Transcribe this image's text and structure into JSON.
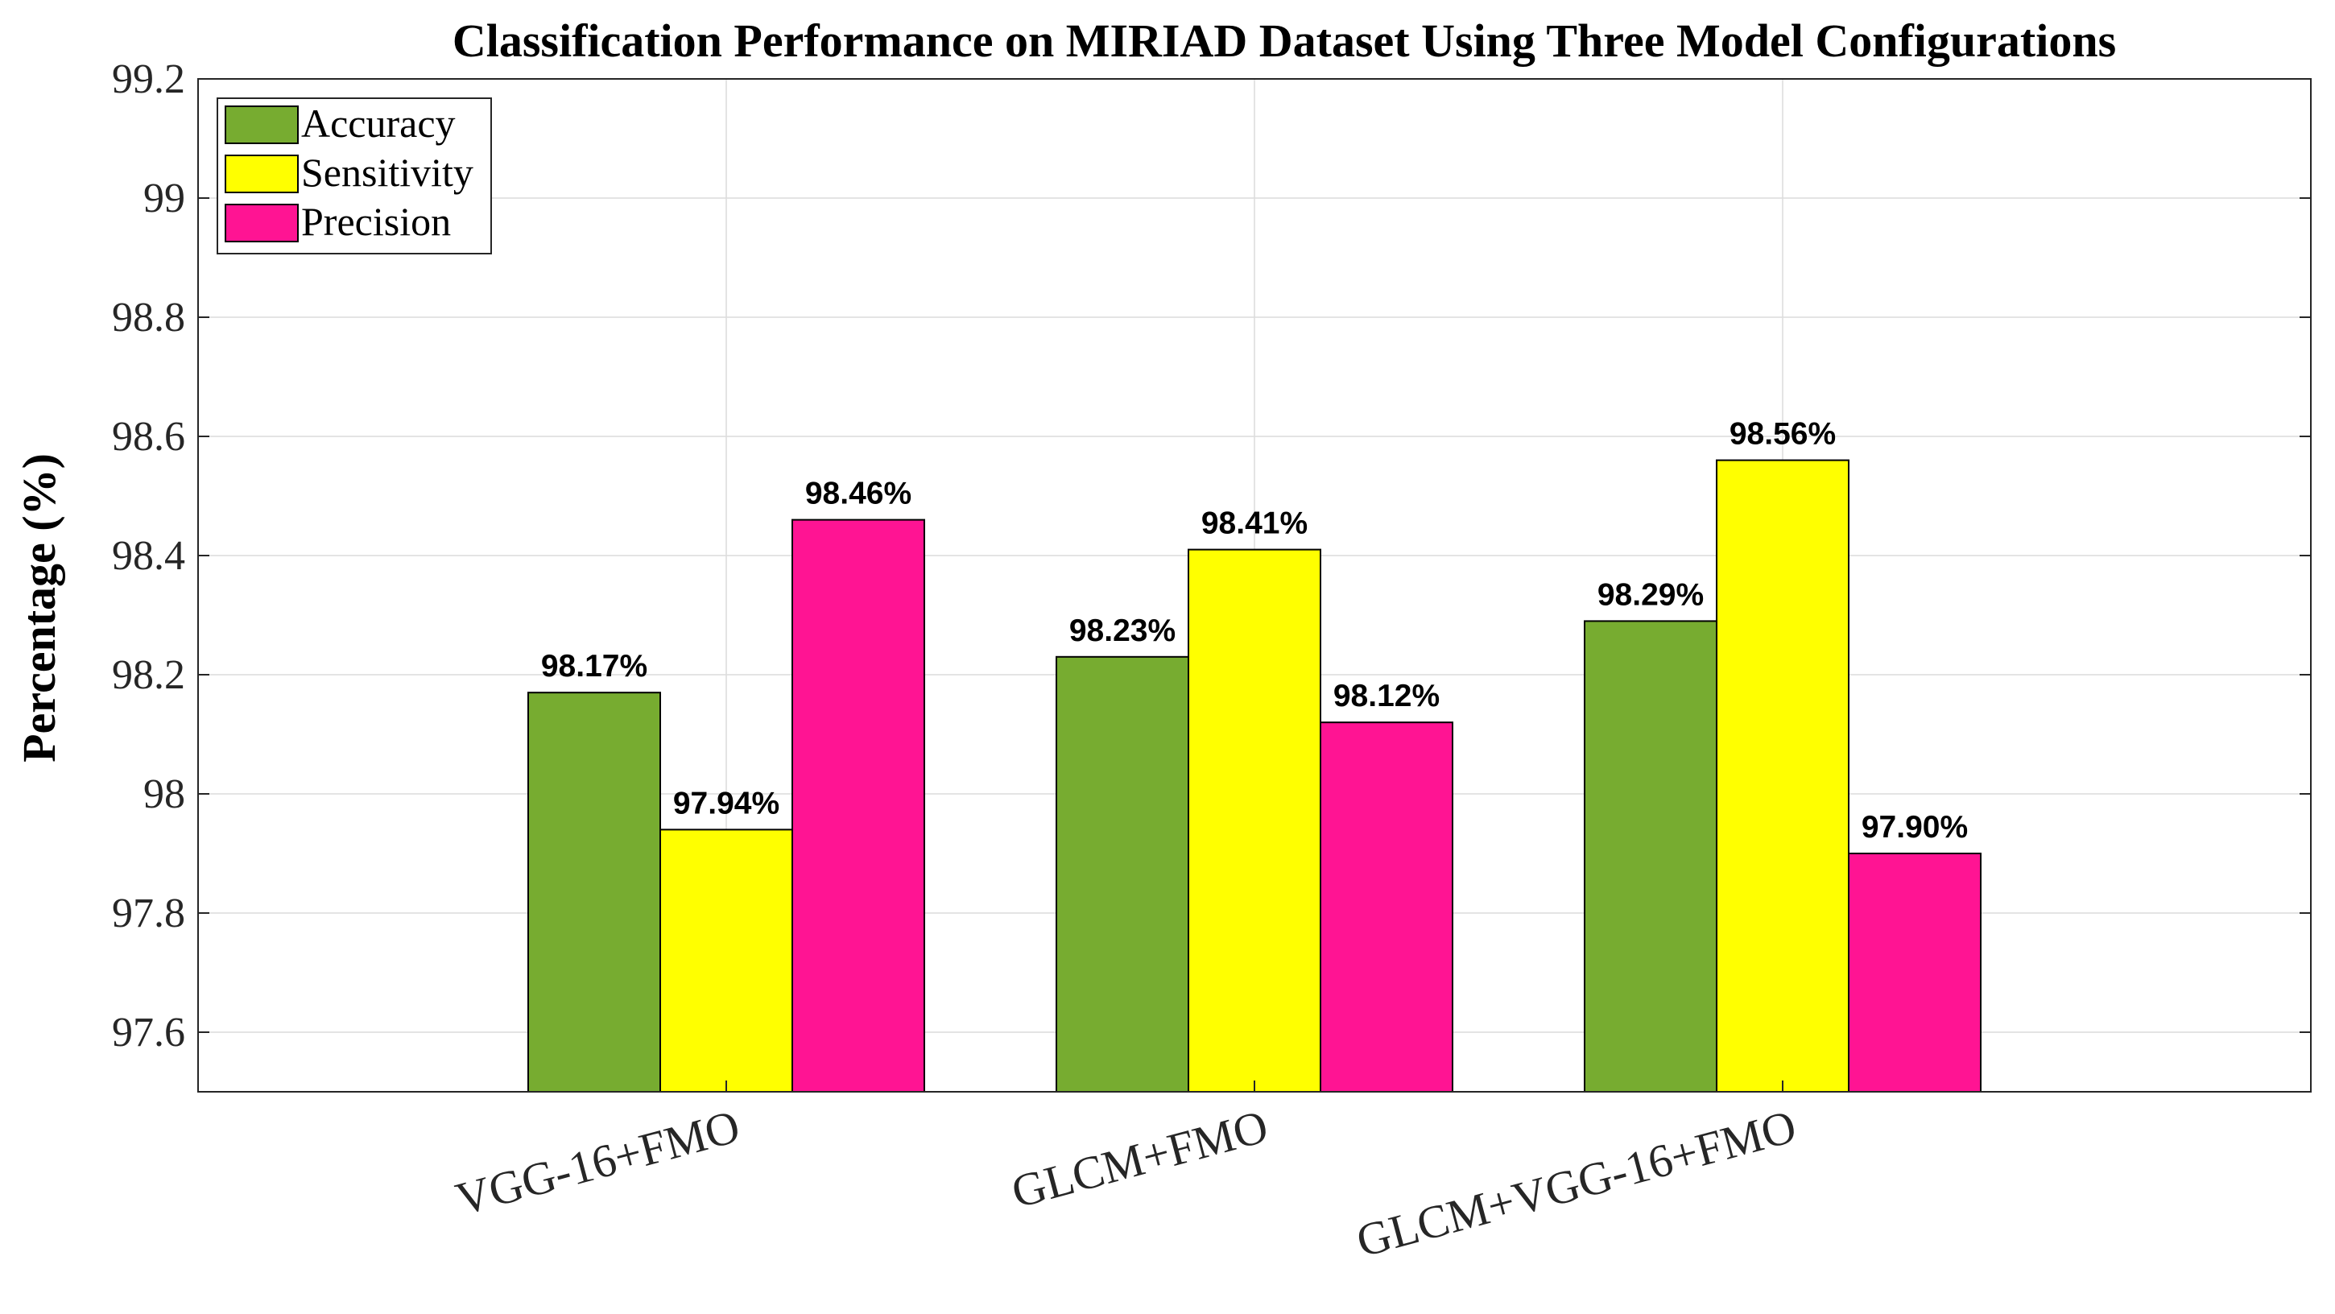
{
  "chart_data": {
    "type": "bar",
    "title": "Classification Performance on MIRIAD Dataset Using Three Model Configurations",
    "xlabel": "",
    "ylabel": "Percentage (%)",
    "ylim": [
      97.5,
      99.2
    ],
    "yticks": [
      97.6,
      97.8,
      98,
      98.2,
      98.4,
      98.6,
      98.8,
      99,
      99.2
    ],
    "ytick_labels": [
      "97.6",
      "97.8",
      "98",
      "98.2",
      "98.4",
      "98.6",
      "98.8",
      "99",
      "99.2"
    ],
    "xlim": [
      0,
      4
    ],
    "categories": [
      "VGG-16+FMO",
      "GLCM+FMO",
      "GLCM+VGG-16+FMO"
    ],
    "grid": true,
    "legend_position": "top-left",
    "series": [
      {
        "name": "Accuracy",
        "color": "#77AC30",
        "values": [
          98.17,
          98.23,
          98.29
        ],
        "labels": [
          "98.17%",
          "98.23%",
          "98.29%"
        ]
      },
      {
        "name": "Sensitivity",
        "color": "#FFFF00",
        "values": [
          97.94,
          98.41,
          98.56
        ],
        "labels": [
          "97.94%",
          "98.41%",
          "98.56%"
        ]
      },
      {
        "name": "Precision",
        "color": "#FF1493",
        "values": [
          98.46,
          98.12,
          97.9
        ],
        "labels": [
          "98.46%",
          "98.12%",
          "97.90%"
        ]
      }
    ]
  }
}
